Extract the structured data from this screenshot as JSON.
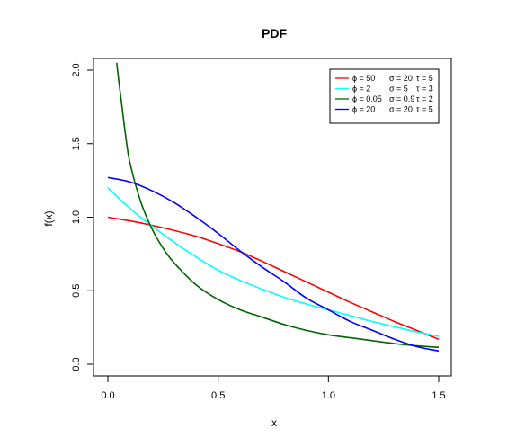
{
  "chart_data": {
    "type": "line",
    "title": "PDF",
    "xlabel": "x",
    "ylabel": "f(x)",
    "xlim": [
      0,
      1.5
    ],
    "ylim": [
      0,
      2.0
    ],
    "xticks": [
      0,
      0.5,
      1.0,
      1.5
    ],
    "xtick_labels": [
      "0.0",
      "0.5",
      "1.0",
      "1.5"
    ],
    "yticks": [
      0,
      0.5,
      1.0,
      1.5,
      2.0
    ],
    "ytick_labels": [
      "0.0",
      "0.5",
      "1.0",
      "1.5",
      "2.0"
    ],
    "grid": false,
    "legend_position": "top-right",
    "series": [
      {
        "name": "ϕ = 50",
        "sigma_label": "σ = 20",
        "tau_label": "τ = 5",
        "color": "#ff0000",
        "x": [
          0,
          0.1,
          0.2,
          0.3,
          0.4,
          0.5,
          0.6,
          0.7,
          0.8,
          0.9,
          1.0,
          1.1,
          1.2,
          1.3,
          1.4,
          1.5
        ],
        "y": [
          1.0,
          0.975,
          0.945,
          0.91,
          0.87,
          0.82,
          0.765,
          0.7,
          0.63,
          0.56,
          0.49,
          0.42,
          0.355,
          0.29,
          0.23,
          0.17
        ]
      },
      {
        "name": "ϕ = 2",
        "sigma_label": "σ = 5",
        "tau_label": "τ = 3",
        "color": "#00ffff",
        "x": [
          0,
          0.1,
          0.2,
          0.3,
          0.4,
          0.5,
          0.6,
          0.7,
          0.8,
          0.9,
          1.0,
          1.1,
          1.2,
          1.3,
          1.4,
          1.5
        ],
        "y": [
          1.2,
          1.06,
          0.94,
          0.83,
          0.73,
          0.64,
          0.57,
          0.51,
          0.455,
          0.41,
          0.37,
          0.33,
          0.29,
          0.255,
          0.22,
          0.19
        ]
      },
      {
        "name": "ϕ = 0.05",
        "sigma_label": "σ = 0.9",
        "tau_label": "τ = 2",
        "color": "#006400",
        "x": [
          0.04,
          0.05,
          0.06,
          0.08,
          0.1,
          0.15,
          0.2,
          0.25,
          0.3,
          0.4,
          0.5,
          0.6,
          0.7,
          0.8,
          0.9,
          1.0,
          1.1,
          1.2,
          1.3,
          1.4,
          1.5
        ],
        "y": [
          2.05,
          1.92,
          1.8,
          1.56,
          1.37,
          1.1,
          0.92,
          0.79,
          0.69,
          0.54,
          0.44,
          0.37,
          0.32,
          0.27,
          0.23,
          0.2,
          0.18,
          0.16,
          0.14,
          0.125,
          0.115
        ]
      },
      {
        "name": "ϕ = 20",
        "sigma_label": "σ = 20",
        "tau_label": "τ = 5",
        "color": "#0000ff",
        "x": [
          0,
          0.1,
          0.2,
          0.3,
          0.4,
          0.5,
          0.6,
          0.7,
          0.8,
          0.9,
          1.0,
          1.1,
          1.2,
          1.3,
          1.4,
          1.5
        ],
        "y": [
          1.27,
          1.24,
          1.18,
          1.1,
          1.0,
          0.89,
          0.77,
          0.66,
          0.56,
          0.45,
          0.37,
          0.29,
          0.23,
          0.17,
          0.12,
          0.09
        ]
      }
    ]
  }
}
